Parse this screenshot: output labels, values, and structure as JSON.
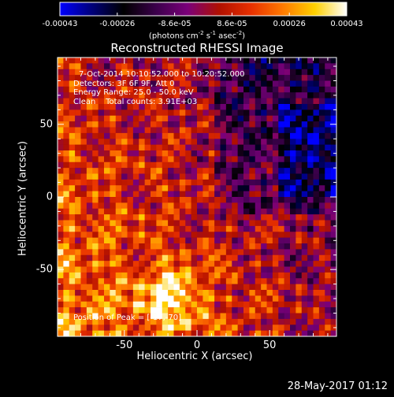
{
  "colorbar": {
    "colors": [
      "#0000ff",
      "#00007a",
      "#000000",
      "#3a004a",
      "#7a007a",
      "#b01000",
      "#e83000",
      "#ff7a00",
      "#ffd000",
      "#ffffff"
    ],
    "tick_labels": [
      "-0.00043",
      "-0.00026",
      "-8.6e-05",
      "8.6e-05",
      "0.00026",
      "0.00043"
    ],
    "units_base": "(photons cm",
    "units_exp1": "-2",
    "units_mid1": " s",
    "units_exp2": "-1",
    "units_mid2": " asec",
    "units_exp3": "-2",
    "units_end": ")"
  },
  "info": {
    "time": "7-Oct-2014 10:10:52.000 to 10:20:52.000",
    "detectors": "Detectors: 3F 6F 9F, Att 0",
    "energy": "Energy Range: 25.0 - 50.0 keV",
    "clean": "Clean    Total counts: 3.91E+03",
    "peak": "Position of Peak = [-17,-70]"
  },
  "footer": "28-May-2017 01:12",
  "chart_data": {
    "type": "heatmap",
    "title": "Reconstructed RHESSI Image",
    "xlabel": "Heliocentric X (arcsec)",
    "ylabel": "Heliocentric Y (arcsec)",
    "xlim": [
      -96,
      96
    ],
    "ylim": [
      -96,
      96
    ],
    "xticks": [
      -50,
      0,
      50
    ],
    "yticks": [
      -50,
      0,
      50
    ],
    "colorbar_range": [
      -0.00043,
      0.00043
    ],
    "peak": [
      -17,
      -70
    ],
    "grid": false
  }
}
